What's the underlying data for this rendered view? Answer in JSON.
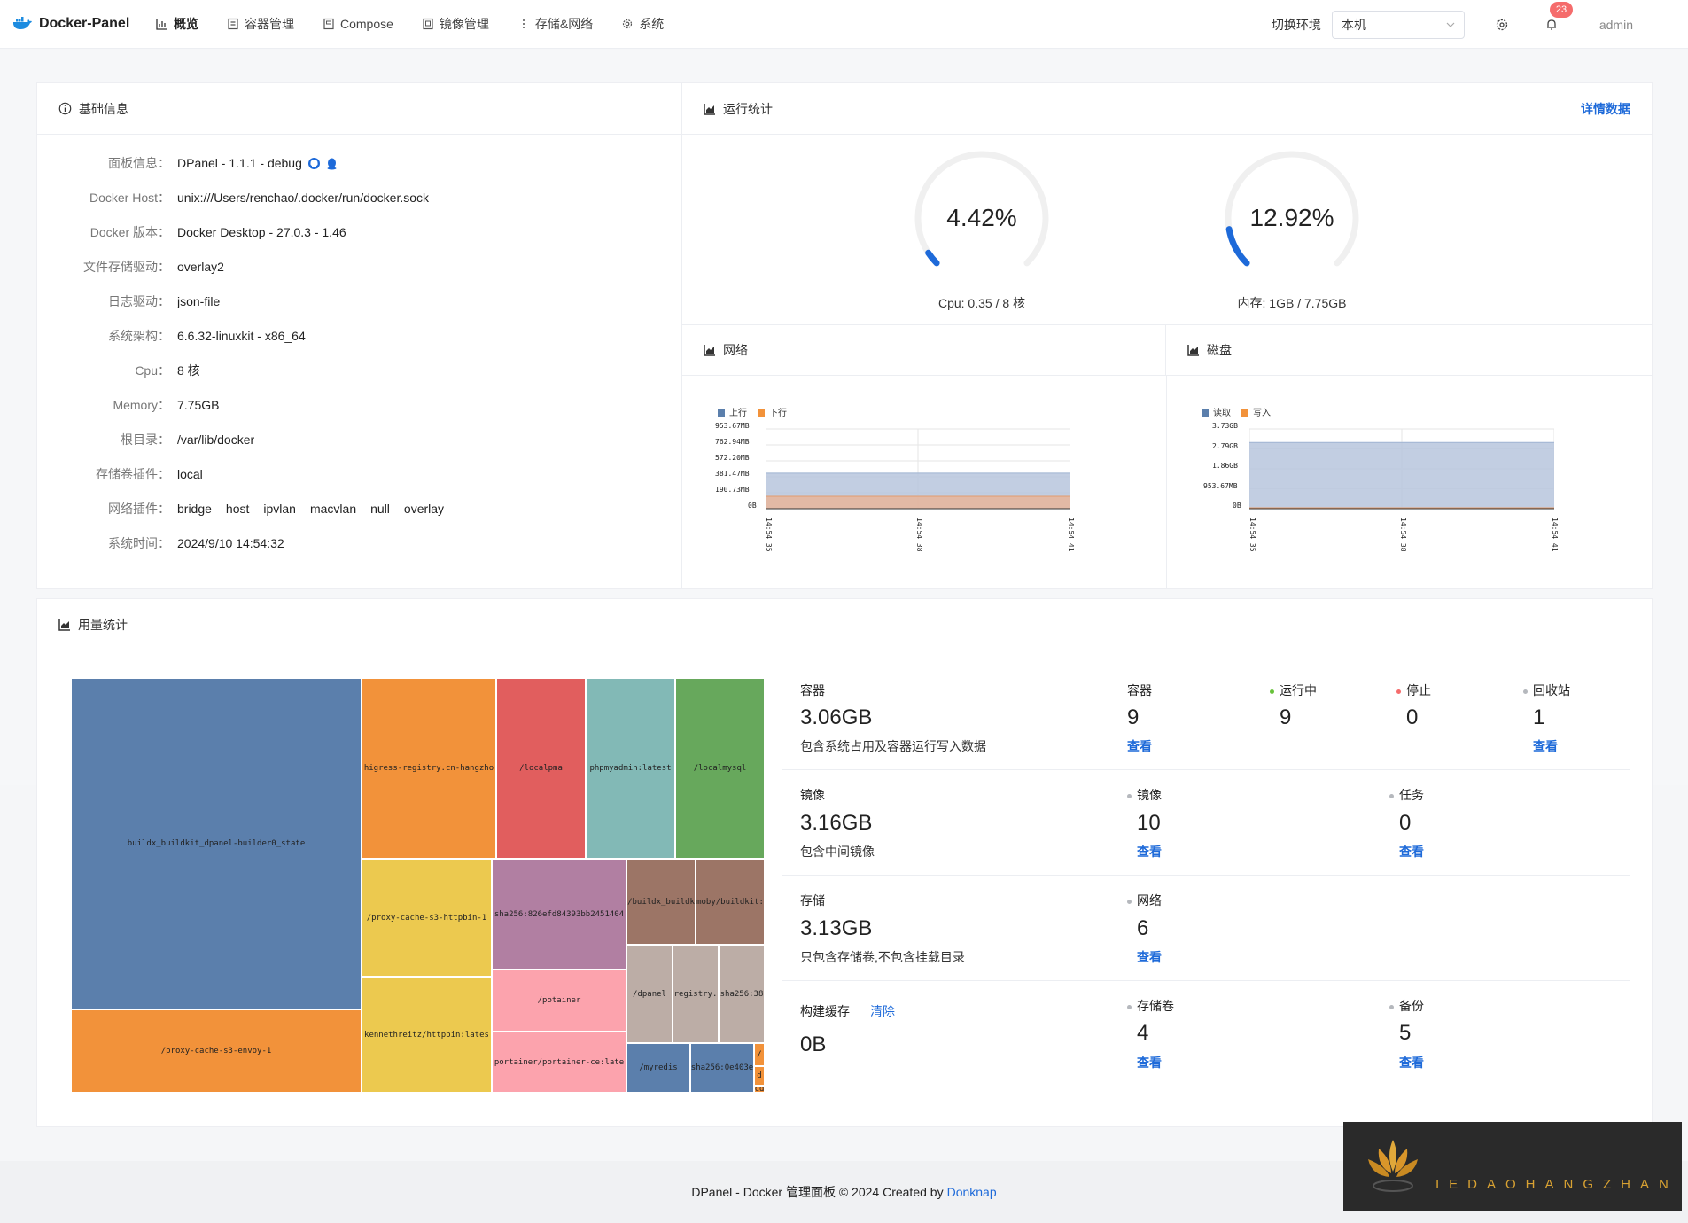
{
  "app": {
    "name": "Docker-Panel"
  },
  "nav": [
    {
      "label": "概览",
      "icon": "chart-icon",
      "active": true
    },
    {
      "label": "容器管理",
      "icon": "container-icon"
    },
    {
      "label": "Compose",
      "icon": "compose-icon"
    },
    {
      "label": "镜像管理",
      "icon": "image-icon"
    },
    {
      "label": "存储&网络",
      "icon": "dots-icon"
    },
    {
      "label": "系统",
      "icon": "gear-icon"
    }
  ],
  "header": {
    "env_label": "切换环境",
    "env_value": "本机",
    "notifications": "23",
    "user": "admin"
  },
  "basic": {
    "title": "基础信息",
    "rows": [
      {
        "label": "面板信息：",
        "value": "DPanel - 1.1.1 - debug"
      },
      {
        "label": "Docker Host：",
        "value": "unix:///Users/renchao/.docker/run/docker.sock"
      },
      {
        "label": "Docker 版本：",
        "value": "Docker Desktop - 27.0.3 - 1.46"
      },
      {
        "label": "文件存储驱动：",
        "value": "overlay2"
      },
      {
        "label": "日志驱动：",
        "value": "json-file"
      },
      {
        "label": "系统架构：",
        "value": "6.6.32-linuxkit - x86_64"
      },
      {
        "label": "Cpu：",
        "value": "8 核"
      },
      {
        "label": "Memory：",
        "value": "7.75GB"
      },
      {
        "label": "根目录：",
        "value": "/var/lib/docker"
      },
      {
        "label": "存储卷插件：",
        "value": "local"
      },
      {
        "label": "网络插件：",
        "value": ""
      },
      {
        "label": "系统时间：",
        "value": "2024/9/10 14:54:32"
      }
    ],
    "network_plugins": [
      "bridge",
      "host",
      "ipvlan",
      "macvlan",
      "null",
      "overlay"
    ]
  },
  "runtime": {
    "title": "运行统计",
    "detail_link": "详情数据",
    "cpu": {
      "value": "4.42%",
      "percent": 4.42,
      "caption": "Cpu: 0.35 / 8 核"
    },
    "mem": {
      "value": "12.92%",
      "percent": 12.92,
      "caption": "内存: 1GB / 7.75GB"
    }
  },
  "network": {
    "title": "网络",
    "legend": [
      "上行",
      "下行"
    ],
    "colors": [
      "#5470c6",
      "#ee8b36"
    ],
    "yticks": [
      "953.67MB",
      "762.94MB",
      "572.20MB",
      "381.47MB",
      "190.73MB",
      "0B"
    ],
    "xticks": [
      "14:54:35",
      "14:54:38",
      "14:54:41"
    ]
  },
  "disk": {
    "title": "磁盘",
    "legend": [
      "读取",
      "写入"
    ],
    "yticks": [
      "3.73GB",
      "2.79GB",
      "1.86GB",
      "953.67MB",
      "0B"
    ],
    "xticks": [
      "14:54:35",
      "14:54:38",
      "14:54:41"
    ]
  },
  "chart_data": [
    {
      "type": "area",
      "x": [
        "14:54:35",
        "14:54:38",
        "14:54:41"
      ],
      "series": [
        {
          "name": "上行",
          "values_mb": [
            425,
            425,
            425
          ]
        },
        {
          "name": "下行",
          "values_mb": [
            148,
            148,
            148
          ]
        }
      ],
      "ylim_mb": [
        0,
        953.67
      ]
    },
    {
      "type": "area",
      "x": [
        "14:54:35",
        "14:54:38",
        "14:54:41"
      ],
      "series": [
        {
          "name": "读取",
          "values_gb": [
            3.1,
            3.1,
            3.1
          ]
        },
        {
          "name": "写入",
          "values_gb": [
            0.04,
            0.04,
            0.04
          ]
        }
      ],
      "ylim_gb": [
        0,
        3.73
      ]
    },
    {
      "type": "heatmap",
      "labels": [
        "buildx_buildkit_dpanel-builder0_state",
        "/proxy-cache-s3-envoy-1",
        "higress-registry.cn-hangzho",
        "/localpma",
        "phpmyadmin:latest",
        "/localmysql",
        "/proxy-cache-s3-httpbin-1",
        "kennethreitz/httpbin:lates",
        "sha256:826efd84393bb2451404",
        "/potainer",
        "portainer/portainer-ce:late",
        "/buildx_buildk",
        "moby/buildkit:",
        "/dpanel",
        "registry.",
        "sha256:38",
        "/myredis",
        "sha256:0e403e"
      ]
    }
  ],
  "usage": {
    "title": "用量统计",
    "treemap": [
      {
        "label": "buildx_buildkit_dpanel-builder0_state",
        "color": "#5b7fac"
      },
      {
        "label": "/proxy-cache-s3-envoy-1",
        "color": "#f2923a"
      },
      {
        "label": "higress-registry.cn-hangzho",
        "color": "#f2923a"
      },
      {
        "label": "/localpma",
        "color": "#e15e5e"
      },
      {
        "label": "phpmyadmin:latest",
        "color": "#82b9b6"
      },
      {
        "label": "/localmysql",
        "color": "#67a85c"
      },
      {
        "label": "/proxy-cache-s3-httpbin-1",
        "color": "#ecc94f"
      },
      {
        "label": "kennethreitz/httpbin:lates",
        "color": "#ecc94f"
      },
      {
        "label": "sha256:826efd84393bb2451404",
        "color": "#b17fa2"
      },
      {
        "label": "/potainer",
        "color": "#fca3ad"
      },
      {
        "label": "portainer/portainer-ce:late",
        "color": "#fca3ad"
      },
      {
        "label": "/buildx_buildk",
        "color": "#9c7566"
      },
      {
        "label": "moby/buildkit:",
        "color": "#9c7566"
      },
      {
        "label": "/dpanel",
        "color": "#bcada6"
      },
      {
        "label": "registry.",
        "color": "#bcada6"
      },
      {
        "label": "sha256:38",
        "color": "#bcada6"
      },
      {
        "label": "/myredis",
        "color": "#5b7fac"
      },
      {
        "label": "sha256:0e403e",
        "color": "#5b7fac"
      },
      {
        "label": "/",
        "color": "#f2923a"
      },
      {
        "label": "d",
        "color": "#f2923a"
      },
      {
        "label": "cd",
        "color": "#f2923a"
      }
    ],
    "container": {
      "label": "容器",
      "size": "3.06GB",
      "desc": "包含系统占用及容器运行写入数据",
      "count_label": "容器",
      "count": "9",
      "view": "查看",
      "running_label": "运行中",
      "running": "9",
      "stopped_label": "停止",
      "stopped": "0",
      "recycle_label": "回收站",
      "recycle": "1",
      "recycle_view": "查看"
    },
    "image": {
      "label": "镜像",
      "size": "3.16GB",
      "desc": "包含中间镜像",
      "count_label": "镜像",
      "count": "10",
      "view": "查看",
      "task_label": "任务",
      "task": "0",
      "task_view": "查看"
    },
    "storage": {
      "label": "存储",
      "size": "3.13GB",
      "desc": "只包含存储卷,不包含挂载目录",
      "net_label": "网络",
      "net": "6",
      "view": "查看"
    },
    "build": {
      "label": "构建缓存",
      "clear": "清除",
      "size": "0B",
      "vol_label": "存储卷",
      "vol": "4",
      "view": "查看",
      "backup_label": "备份",
      "backup": "5",
      "backup_view": "查看"
    }
  },
  "footer": {
    "text": "DPanel - Docker 管理面板 © 2024 Created by",
    "author": "Donknap"
  },
  "watermark": {
    "text": "IEDAOHANGZHAN"
  },
  "colors": {
    "accent": "#1e6ad9",
    "running": "#67c23a",
    "stopped": "#f56c6c",
    "neutral": "#b5b8bd"
  }
}
